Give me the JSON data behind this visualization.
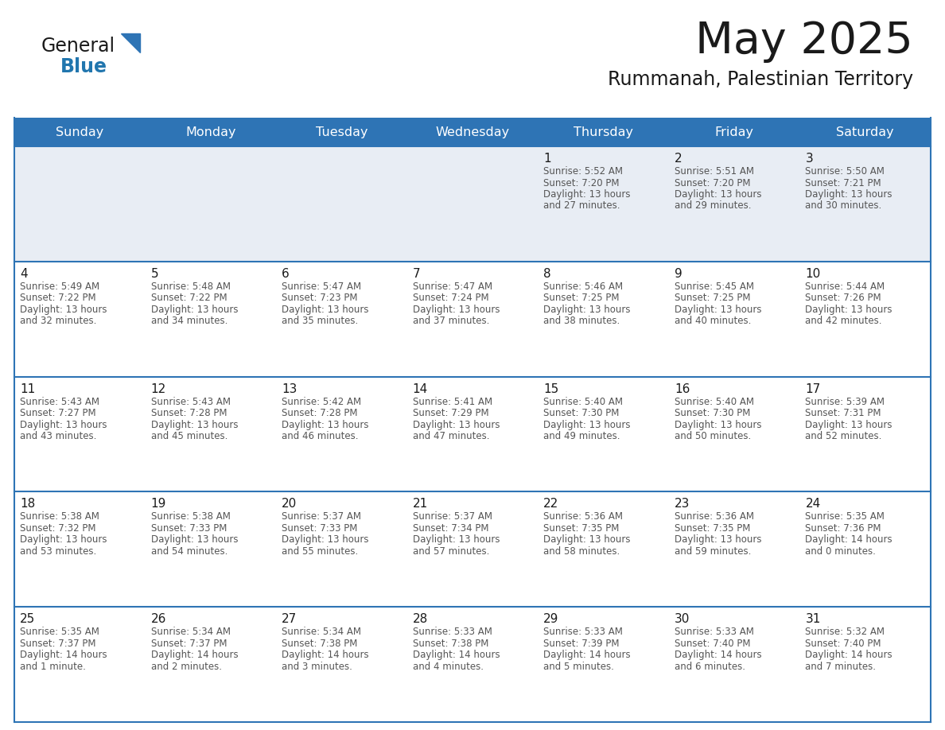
{
  "title": "May 2025",
  "subtitle": "Rummanah, Palestinian Territory",
  "header_bg": "#2E74B5",
  "header_text_color": "#FFFFFF",
  "row1_bg": "#E8EDF4",
  "row_bg": "#FFFFFF",
  "border_color": "#2E74B5",
  "text_color": "#333333",
  "days_of_week": [
    "Sunday",
    "Monday",
    "Tuesday",
    "Wednesday",
    "Thursday",
    "Friday",
    "Saturday"
  ],
  "weeks": [
    [
      {
        "day": "",
        "info": ""
      },
      {
        "day": "",
        "info": ""
      },
      {
        "day": "",
        "info": ""
      },
      {
        "day": "",
        "info": ""
      },
      {
        "day": "1",
        "info": "Sunrise: 5:52 AM\nSunset: 7:20 PM\nDaylight: 13 hours\nand 27 minutes."
      },
      {
        "day": "2",
        "info": "Sunrise: 5:51 AM\nSunset: 7:20 PM\nDaylight: 13 hours\nand 29 minutes."
      },
      {
        "day": "3",
        "info": "Sunrise: 5:50 AM\nSunset: 7:21 PM\nDaylight: 13 hours\nand 30 minutes."
      }
    ],
    [
      {
        "day": "4",
        "info": "Sunrise: 5:49 AM\nSunset: 7:22 PM\nDaylight: 13 hours\nand 32 minutes."
      },
      {
        "day": "5",
        "info": "Sunrise: 5:48 AM\nSunset: 7:22 PM\nDaylight: 13 hours\nand 34 minutes."
      },
      {
        "day": "6",
        "info": "Sunrise: 5:47 AM\nSunset: 7:23 PM\nDaylight: 13 hours\nand 35 minutes."
      },
      {
        "day": "7",
        "info": "Sunrise: 5:47 AM\nSunset: 7:24 PM\nDaylight: 13 hours\nand 37 minutes."
      },
      {
        "day": "8",
        "info": "Sunrise: 5:46 AM\nSunset: 7:25 PM\nDaylight: 13 hours\nand 38 minutes."
      },
      {
        "day": "9",
        "info": "Sunrise: 5:45 AM\nSunset: 7:25 PM\nDaylight: 13 hours\nand 40 minutes."
      },
      {
        "day": "10",
        "info": "Sunrise: 5:44 AM\nSunset: 7:26 PM\nDaylight: 13 hours\nand 42 minutes."
      }
    ],
    [
      {
        "day": "11",
        "info": "Sunrise: 5:43 AM\nSunset: 7:27 PM\nDaylight: 13 hours\nand 43 minutes."
      },
      {
        "day": "12",
        "info": "Sunrise: 5:43 AM\nSunset: 7:28 PM\nDaylight: 13 hours\nand 45 minutes."
      },
      {
        "day": "13",
        "info": "Sunrise: 5:42 AM\nSunset: 7:28 PM\nDaylight: 13 hours\nand 46 minutes."
      },
      {
        "day": "14",
        "info": "Sunrise: 5:41 AM\nSunset: 7:29 PM\nDaylight: 13 hours\nand 47 minutes."
      },
      {
        "day": "15",
        "info": "Sunrise: 5:40 AM\nSunset: 7:30 PM\nDaylight: 13 hours\nand 49 minutes."
      },
      {
        "day": "16",
        "info": "Sunrise: 5:40 AM\nSunset: 7:30 PM\nDaylight: 13 hours\nand 50 minutes."
      },
      {
        "day": "17",
        "info": "Sunrise: 5:39 AM\nSunset: 7:31 PM\nDaylight: 13 hours\nand 52 minutes."
      }
    ],
    [
      {
        "day": "18",
        "info": "Sunrise: 5:38 AM\nSunset: 7:32 PM\nDaylight: 13 hours\nand 53 minutes."
      },
      {
        "day": "19",
        "info": "Sunrise: 5:38 AM\nSunset: 7:33 PM\nDaylight: 13 hours\nand 54 minutes."
      },
      {
        "day": "20",
        "info": "Sunrise: 5:37 AM\nSunset: 7:33 PM\nDaylight: 13 hours\nand 55 minutes."
      },
      {
        "day": "21",
        "info": "Sunrise: 5:37 AM\nSunset: 7:34 PM\nDaylight: 13 hours\nand 57 minutes."
      },
      {
        "day": "22",
        "info": "Sunrise: 5:36 AM\nSunset: 7:35 PM\nDaylight: 13 hours\nand 58 minutes."
      },
      {
        "day": "23",
        "info": "Sunrise: 5:36 AM\nSunset: 7:35 PM\nDaylight: 13 hours\nand 59 minutes."
      },
      {
        "day": "24",
        "info": "Sunrise: 5:35 AM\nSunset: 7:36 PM\nDaylight: 14 hours\nand 0 minutes."
      }
    ],
    [
      {
        "day": "25",
        "info": "Sunrise: 5:35 AM\nSunset: 7:37 PM\nDaylight: 14 hours\nand 1 minute."
      },
      {
        "day": "26",
        "info": "Sunrise: 5:34 AM\nSunset: 7:37 PM\nDaylight: 14 hours\nand 2 minutes."
      },
      {
        "day": "27",
        "info": "Sunrise: 5:34 AM\nSunset: 7:38 PM\nDaylight: 14 hours\nand 3 minutes."
      },
      {
        "day": "28",
        "info": "Sunrise: 5:33 AM\nSunset: 7:38 PM\nDaylight: 14 hours\nand 4 minutes."
      },
      {
        "day": "29",
        "info": "Sunrise: 5:33 AM\nSunset: 7:39 PM\nDaylight: 14 hours\nand 5 minutes."
      },
      {
        "day": "30",
        "info": "Sunrise: 5:33 AM\nSunset: 7:40 PM\nDaylight: 14 hours\nand 6 minutes."
      },
      {
        "day": "31",
        "info": "Sunrise: 5:32 AM\nSunset: 7:40 PM\nDaylight: 14 hours\nand 7 minutes."
      }
    ]
  ]
}
